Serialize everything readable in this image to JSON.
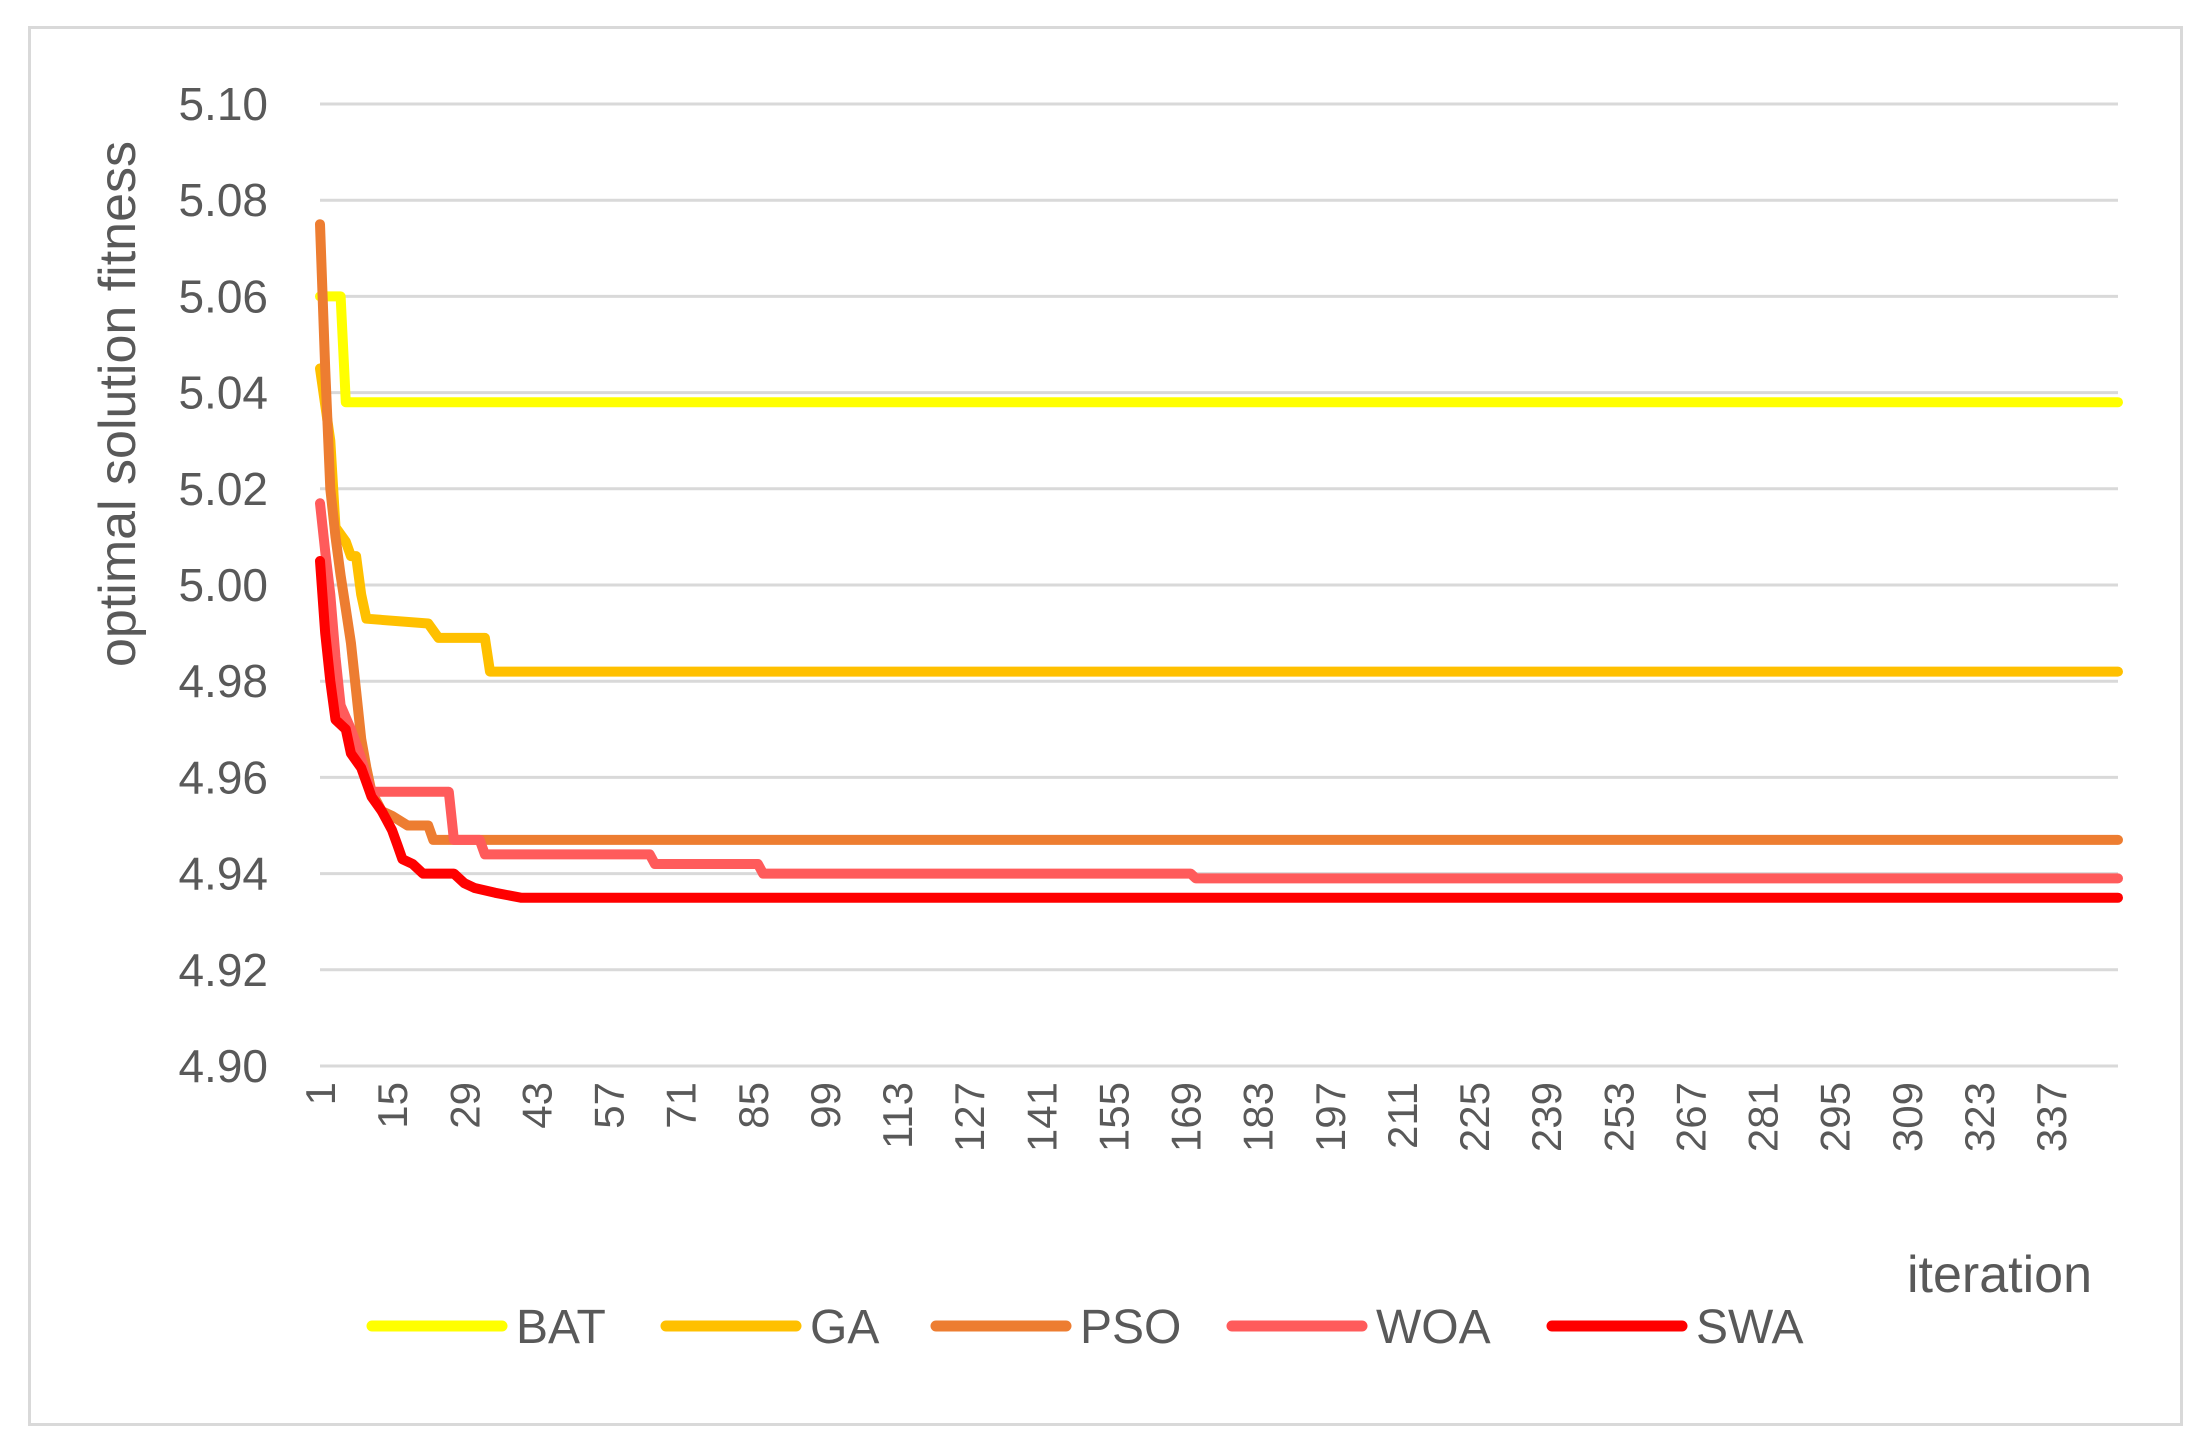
{
  "chart_data": {
    "type": "line",
    "title": "",
    "xlabel": "iteration",
    "ylabel": "optimal solution fitness",
    "ylim": [
      4.9,
      5.1
    ],
    "yticks": [
      "5.10",
      "5.08",
      "5.06",
      "5.04",
      "5.02",
      "5.00",
      "4.98",
      "4.96",
      "4.94",
      "4.92",
      "4.90"
    ],
    "xlim": [
      1,
      350
    ],
    "xticks": [
      1,
      15,
      29,
      43,
      57,
      71,
      85,
      99,
      113,
      127,
      141,
      155,
      169,
      183,
      197,
      211,
      225,
      239,
      253,
      267,
      281,
      295,
      309,
      323,
      337
    ],
    "grid": "horizontal",
    "legend_position": "bottom",
    "series": [
      {
        "name": "BAT",
        "color": "#ffff00",
        "points": [
          [
            1,
            5.06
          ],
          [
            5,
            5.06
          ],
          [
            6,
            5.038
          ],
          [
            350,
            5.038
          ]
        ]
      },
      {
        "name": "GA",
        "color": "#ffc000",
        "points": [
          [
            1,
            5.045
          ],
          [
            3,
            5.03
          ],
          [
            4,
            5.012
          ],
          [
            6,
            5.009
          ],
          [
            7,
            5.006
          ],
          [
            8,
            5.006
          ],
          [
            9,
            4.998
          ],
          [
            10,
            4.993
          ],
          [
            22,
            4.992
          ],
          [
            24,
            4.989
          ],
          [
            33,
            4.989
          ],
          [
            34,
            4.982
          ],
          [
            350,
            4.982
          ]
        ]
      },
      {
        "name": "PSO",
        "color": "#ed7d31",
        "points": [
          [
            1,
            5.075
          ],
          [
            2,
            5.045
          ],
          [
            3,
            5.02
          ],
          [
            4,
            5.01
          ],
          [
            5,
            5.002
          ],
          [
            6,
            4.995
          ],
          [
            7,
            4.988
          ],
          [
            8,
            4.978
          ],
          [
            9,
            4.968
          ],
          [
            10,
            4.962
          ],
          [
            11,
            4.957
          ],
          [
            13,
            4.953
          ],
          [
            15,
            4.952
          ],
          [
            18,
            4.95
          ],
          [
            22,
            4.95
          ],
          [
            23,
            4.947
          ],
          [
            350,
            4.947
          ]
        ]
      },
      {
        "name": "WOA",
        "color": "#ff5b5b",
        "points": [
          [
            1,
            5.017
          ],
          [
            2,
            5.007
          ],
          [
            3,
            4.998
          ],
          [
            4,
            4.985
          ],
          [
            5,
            4.975
          ],
          [
            7,
            4.97
          ],
          [
            9,
            4.964
          ],
          [
            10,
            4.96
          ],
          [
            11,
            4.957
          ],
          [
            26,
            4.957
          ],
          [
            27,
            4.947
          ],
          [
            32,
            4.947
          ],
          [
            33,
            4.944
          ],
          [
            65,
            4.944
          ],
          [
            66,
            4.942
          ],
          [
            86,
            4.942
          ],
          [
            87,
            4.94
          ],
          [
            170,
            4.94
          ],
          [
            171,
            4.939
          ],
          [
            350,
            4.939
          ]
        ]
      },
      {
        "name": "SWA",
        "color": "#ff0000",
        "points": [
          [
            1,
            5.005
          ],
          [
            2,
            4.99
          ],
          [
            3,
            4.98
          ],
          [
            4,
            4.972
          ],
          [
            6,
            4.97
          ],
          [
            7,
            4.965
          ],
          [
            9,
            4.962
          ],
          [
            11,
            4.956
          ],
          [
            13,
            4.953
          ],
          [
            15,
            4.949
          ],
          [
            16,
            4.946
          ],
          [
            17,
            4.943
          ],
          [
            19,
            4.942
          ],
          [
            21,
            4.94
          ],
          [
            27,
            4.94
          ],
          [
            29,
            4.938
          ],
          [
            31,
            4.937
          ],
          [
            35,
            4.936
          ],
          [
            40,
            4.935
          ],
          [
            350,
            4.935
          ]
        ]
      }
    ]
  }
}
